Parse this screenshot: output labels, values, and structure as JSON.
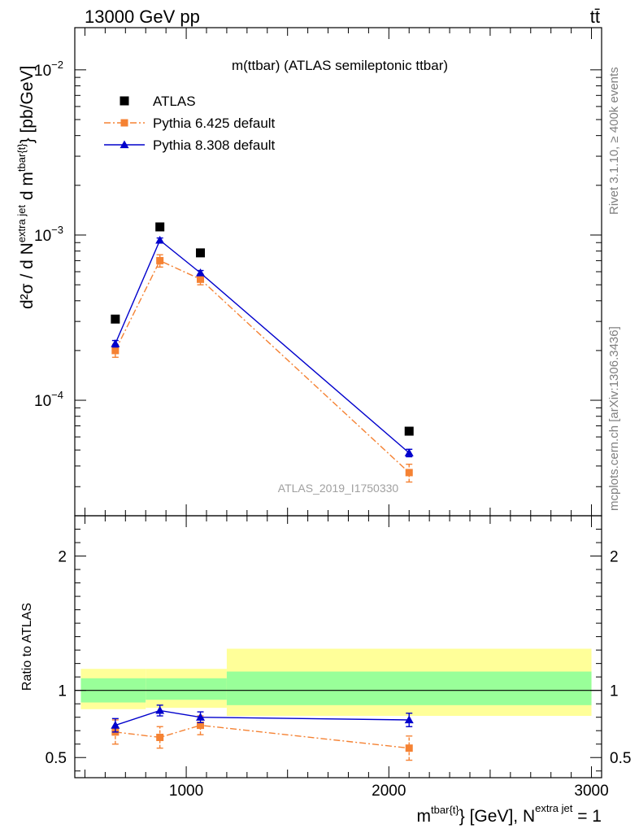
{
  "header": {
    "left": "13000 GeV pp",
    "right": "tt̄"
  },
  "side_labels": {
    "rivet": "Rivet 3.1.10, ≥ 400k events",
    "mcplots": "mcplots.cern.ch [arXiv:1306.3436]"
  },
  "chart_data": [
    {
      "type": "scatter",
      "title": "m(ttbar) (ATLAS semileptonic ttbar)",
      "watermark": "ATLAS_2019_I1750330",
      "ylabel": {
        "base": "d²σ / d N",
        "sup1": "extra jet",
        "mid": " d m",
        "sup2": "tbar{t}",
        "unit": "} [pb/GeV]"
      },
      "xlim": [
        450,
        3050
      ],
      "ylim": [
        2e-05,
        0.018
      ],
      "yscale": "log",
      "ytick_labels": [
        {
          "value": 0.01,
          "base": "10",
          "exp": "−2"
        },
        {
          "value": 0.001,
          "base": "10",
          "exp": "−3"
        },
        {
          "value": 0.0001,
          "base": "10",
          "exp": "−4"
        }
      ],
      "legend": {
        "position": "top-left",
        "entries": [
          "ATLAS",
          "Pythia 6.425 default",
          "Pythia 8.308 default"
        ]
      },
      "series": [
        {
          "name": "ATLAS",
          "color": "#000000",
          "marker": "square",
          "x": [
            650,
            870,
            1070,
            2100
          ],
          "y": [
            0.00031,
            0.00112,
            0.00078,
            6.5e-05
          ]
        },
        {
          "name": "Pythia 6.425 default",
          "color": "#f58233",
          "marker": "square",
          "line": "dash-dot",
          "x": [
            650,
            870,
            1070,
            2100
          ],
          "y": [
            0.0002,
            0.0007,
            0.00054,
            3.65e-05
          ],
          "err_low": [
            1.8e-05,
            6e-05,
            4e-05,
            4.5e-06
          ],
          "err_high": [
            1.8e-05,
            6e-05,
            4e-05,
            4.5e-06
          ]
        },
        {
          "name": "Pythia 8.308 default",
          "color": "#0000cc",
          "marker": "triangle",
          "line": "solid",
          "x": [
            650,
            870,
            1070,
            2100
          ],
          "y": [
            0.00022,
            0.00093,
            0.00059,
            4.8e-05
          ],
          "err_low": [
            1e-05,
            3e-05,
            2e-05,
            2.5e-06
          ],
          "err_high": [
            1e-05,
            3e-05,
            2e-05,
            2.5e-06
          ]
        }
      ]
    },
    {
      "type": "scatter",
      "ylabel": "Ratio to ATLAS",
      "xlabel": {
        "m": "m",
        "sup1": "tbar{t}",
        "mid": "} [GeV], N",
        "sup2": "extra jet",
        "tail": " = 1"
      },
      "xlim": [
        450,
        3050
      ],
      "ylim": [
        0.35,
        2.3
      ],
      "ytick_labels": [
        {
          "value": 0.5,
          "label": "0.5"
        },
        {
          "value": 1,
          "label": "1"
        },
        {
          "value": 2,
          "label": "2"
        }
      ],
      "xtick_labels": [
        {
          "value": 1000,
          "label": "1000"
        },
        {
          "value": 2000,
          "label": "2000"
        },
        {
          "value": 3000,
          "label": "3000"
        }
      ],
      "bands": [
        {
          "x0": 480,
          "x1": 800,
          "inner": [
            0.91,
            1.09
          ],
          "outer": [
            0.86,
            1.16
          ]
        },
        {
          "x0": 800,
          "x1": 1200,
          "inner": [
            0.93,
            1.09
          ],
          "outer": [
            0.87,
            1.16
          ]
        },
        {
          "x0": 1200,
          "x1": 3000,
          "inner": [
            0.89,
            1.14
          ],
          "outer": [
            0.81,
            1.31
          ]
        }
      ],
      "band_colors": {
        "inner": "#99ff99",
        "outer": "#ffff99"
      },
      "series": [
        {
          "name": "Pythia 6.425 default",
          "color": "#f58233",
          "marker": "square",
          "line": "dash-dot",
          "x": [
            650,
            870,
            1070,
            2100
          ],
          "y": [
            0.69,
            0.65,
            0.74,
            0.57
          ],
          "err_low": [
            0.09,
            0.08,
            0.07,
            0.09
          ],
          "err_high": [
            0.09,
            0.08,
            0.07,
            0.09
          ]
        },
        {
          "name": "Pythia 8.308 default",
          "color": "#0000cc",
          "marker": "triangle",
          "line": "solid",
          "x": [
            650,
            870,
            1070,
            2100
          ],
          "y": [
            0.74,
            0.85,
            0.8,
            0.78
          ],
          "err_low": [
            0.05,
            0.04,
            0.04,
            0.05
          ],
          "err_high": [
            0.05,
            0.04,
            0.04,
            0.05
          ]
        }
      ]
    }
  ]
}
